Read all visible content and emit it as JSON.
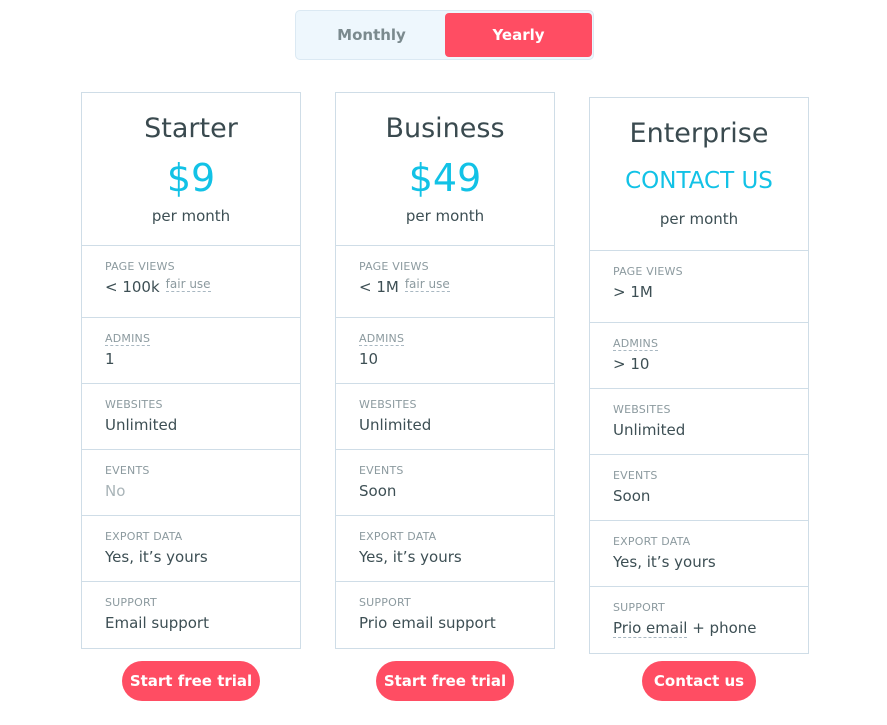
{
  "billing_toggle": {
    "monthly": "Monthly",
    "yearly": "Yearly",
    "selected": "Yearly"
  },
  "colors": {
    "accent": "#ff4d63",
    "price": "#12c2e6"
  },
  "plans": [
    {
      "name": "Starter",
      "price": "$9",
      "period": "per month",
      "button": "Start free trial",
      "features": [
        {
          "label": "PAGE VIEWS",
          "value": "< 100k",
          "note": "fair use"
        },
        {
          "label": "ADMINS",
          "value": "1"
        },
        {
          "label": "WEBSITES",
          "value": "Unlimited"
        },
        {
          "label": "EVENTS",
          "value": "No",
          "muted": true
        },
        {
          "label": "EXPORT DATA",
          "value": "Yes, it’s yours"
        },
        {
          "label": "SUPPORT",
          "value": "Email support"
        }
      ]
    },
    {
      "name": "Business",
      "price": "$49",
      "period": "per month",
      "button": "Start free trial",
      "features": [
        {
          "label": "PAGE VIEWS",
          "value": "< 1M",
          "note": "fair use"
        },
        {
          "label": "ADMINS",
          "value": "10"
        },
        {
          "label": "WEBSITES",
          "value": "Unlimited"
        },
        {
          "label": "EVENTS",
          "value": "Soon"
        },
        {
          "label": "EXPORT DATA",
          "value": "Yes, it’s yours"
        },
        {
          "label": "SUPPORT",
          "value": "Prio email support"
        }
      ]
    },
    {
      "name": "Enterprise",
      "price": "CONTACT US",
      "period": "per month",
      "button": "Contact us",
      "features": [
        {
          "label": "PAGE VIEWS",
          "value": "> 1M"
        },
        {
          "label": "ADMINS",
          "value": "> 10"
        },
        {
          "label": "WEBSITES",
          "value": "Unlimited"
        },
        {
          "label": "EVENTS",
          "value": "Soon"
        },
        {
          "label": "EXPORT DATA",
          "value": "Yes, it’s yours"
        },
        {
          "label": "SUPPORT",
          "value": "Prio email",
          "value_suffix": " + phone"
        }
      ]
    }
  ]
}
